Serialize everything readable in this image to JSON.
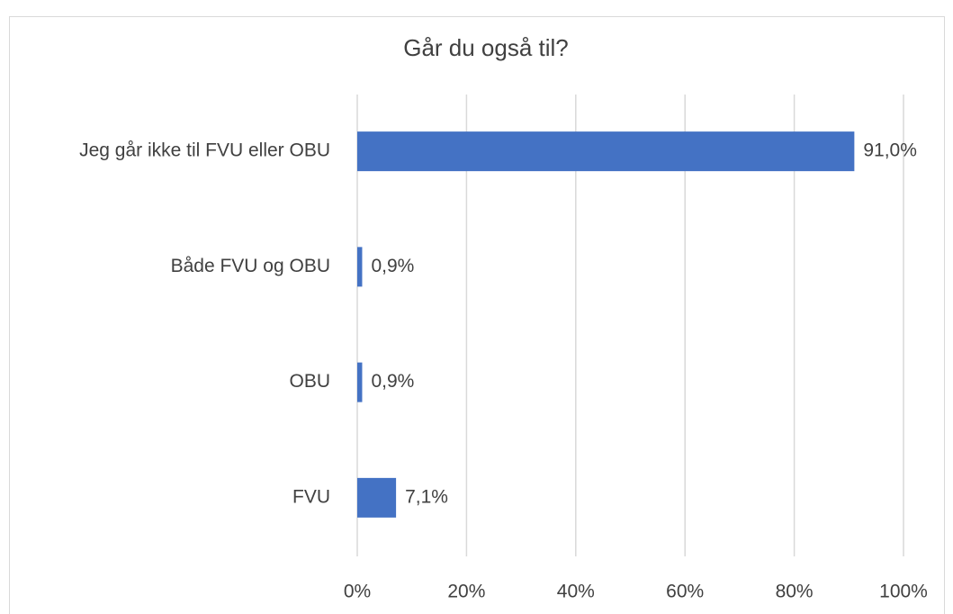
{
  "chart_data": {
    "type": "barh",
    "title": "Går du også til?",
    "categories": [
      "Jeg går ikke til FVU eller OBU",
      "Både FVU og OBU",
      "OBU",
      "FVU"
    ],
    "values": [
      91.0,
      0.9,
      0.9,
      7.1
    ],
    "value_labels": [
      "91,0%",
      "0,9%",
      "0,9%",
      "7,1%"
    ],
    "color": "#4472c4",
    "xlim": [
      0,
      100
    ],
    "xticks": [
      {
        "value": 0,
        "label": "0%"
      },
      {
        "value": 20,
        "label": "20%"
      },
      {
        "value": 40,
        "label": "40%"
      },
      {
        "value": 60,
        "label": "60%"
      },
      {
        "value": 80,
        "label": "80%"
      },
      {
        "value": 100,
        "label": "100%"
      }
    ],
    "grid": true
  }
}
